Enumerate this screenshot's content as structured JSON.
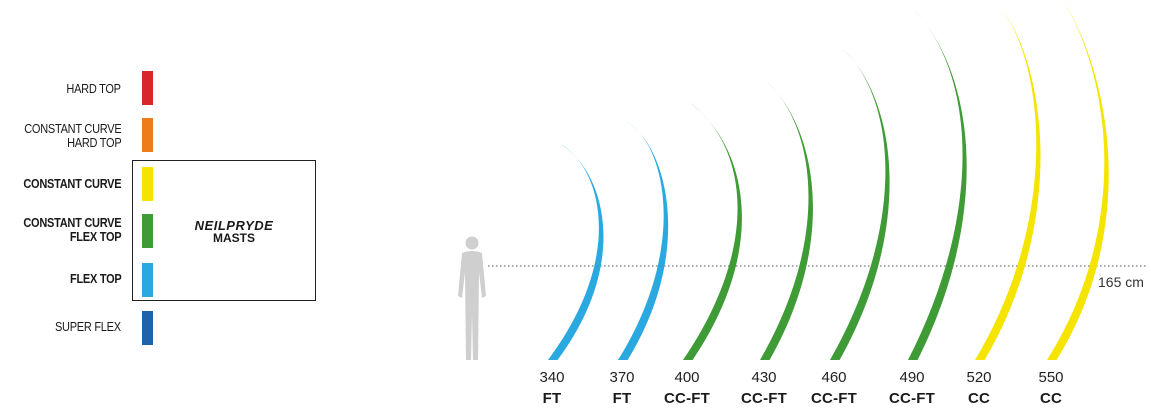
{
  "legend": [
    {
      "label": [
        "HARD TOP"
      ],
      "color": "#d9262a",
      "bold": false
    },
    {
      "label": [
        "CONSTANT CURVE",
        "HARD TOP"
      ],
      "color": "#ef7d17",
      "bold": false
    },
    {
      "label": [
        "CONSTANT CURVE"
      ],
      "color": "#f5e400",
      "bold": true
    },
    {
      "label": [
        "CONSTANT CURVE",
        "FLEX TOP"
      ],
      "color": "#3e9b35",
      "bold": true
    },
    {
      "label": [
        "FLEX TOP"
      ],
      "color": "#29a9df",
      "bold": true
    },
    {
      "label": [
        "SUPER FLEX"
      ],
      "color": "#1f63ad",
      "bold": false
    }
  ],
  "brand": {
    "name": "NEILPRYDE",
    "subtitle": "MASTS"
  },
  "reference": {
    "height_label": "165 cm",
    "figure_icon": "person-silhouette-icon"
  },
  "masts": [
    {
      "length": "340",
      "type": "FT",
      "color": "#29a9df"
    },
    {
      "length": "370",
      "type": "FT",
      "color": "#29a9df"
    },
    {
      "length": "400",
      "type": "CC-FT",
      "color": "#3e9b35"
    },
    {
      "length": "430",
      "type": "CC-FT",
      "color": "#3e9b35"
    },
    {
      "length": "460",
      "type": "CC-FT",
      "color": "#3e9b35"
    },
    {
      "length": "490",
      "type": "CC-FT",
      "color": "#3e9b35"
    },
    {
      "length": "520",
      "type": "CC",
      "color": "#f5e400"
    },
    {
      "length": "550",
      "type": "CC",
      "color": "#f5e400"
    }
  ]
}
